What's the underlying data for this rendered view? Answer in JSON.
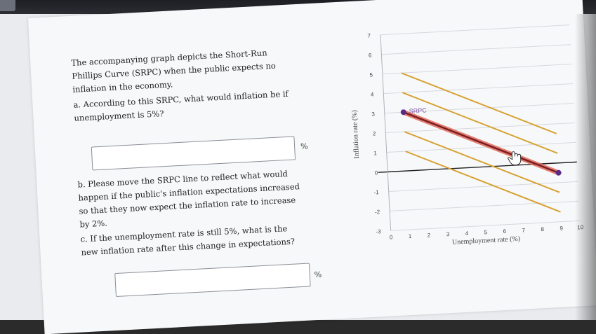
{
  "question": {
    "intro": "The accompanying graph depicts the Short-Run Phillips Curve (SRPC) when the public expects no inflation in the economy.",
    "part_a": "a. According to this SRPC, what would inflation be if unemployment is 5%?",
    "part_b": "b. Please move the SRPC line to reflect what would happen if the public's inflation expectations increased so that they now expect the inflation rate to increase by 2%.",
    "part_c": "c. If the unemployment rate is still 5%, what is the new inflation rate after this change in expectations?",
    "answer_a_value": "",
    "answer_c_value": "",
    "unit": "%"
  },
  "chart_data": {
    "type": "line",
    "xlabel": "Unemployment rate (%)",
    "ylabel": "Inflation rate (%)",
    "xlim": [
      0,
      10
    ],
    "ylim": [
      -3,
      7
    ],
    "x_ticks": [
      "0",
      "1",
      "2",
      "3",
      "4",
      "5",
      "6",
      "7",
      "8",
      "9",
      "10"
    ],
    "y_ticks": [
      "-3",
      "-2",
      "-1",
      "0",
      "1",
      "2",
      "3",
      "4",
      "5",
      "6",
      "7"
    ],
    "series": [
      {
        "name": "SRPC",
        "x": [
          1,
          9
        ],
        "y": [
          3,
          -0.5
        ]
      }
    ],
    "reference_lines": [
      {
        "x": [
          1,
          9
        ],
        "y": [
          5,
          1.5
        ]
      },
      {
        "x": [
          1,
          9
        ],
        "y": [
          4,
          0.5
        ]
      },
      {
        "x": [
          1,
          9
        ],
        "y": [
          2,
          -1.5
        ]
      },
      {
        "x": [
          1,
          9
        ],
        "y": [
          1,
          -2.5
        ]
      }
    ],
    "colors": {
      "srpc": "#7a1e24",
      "srpc_highlight": "#e06a5a",
      "reference": "#d7a233",
      "handle": "#5a2a8a"
    }
  }
}
